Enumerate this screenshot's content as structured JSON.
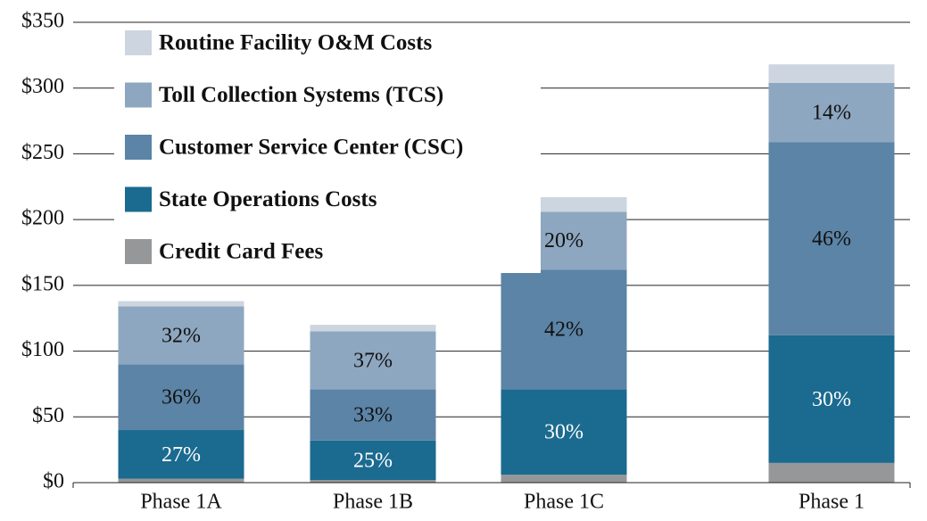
{
  "chart_data": {
    "type": "stacked_bar",
    "categories": [
      "Phase 1A",
      "Phase 1B",
      "Phase 1C",
      "Phase 1"
    ],
    "series": [
      {
        "name": "Credit Card Fees",
        "color": "#959799",
        "values": [
          3,
          2,
          6,
          15
        ]
      },
      {
        "name": "State Operations Costs",
        "color": "#1b6a8f",
        "values": [
          37,
          30,
          65,
          97
        ],
        "labels": [
          "27%",
          "25%",
          "30%",
          "30%"
        ],
        "label_color": "#ffffff"
      },
      {
        "name": "Customer Service Center (CSC)",
        "color": "#5b84a6",
        "values": [
          50,
          39,
          91,
          147
        ],
        "labels": [
          "36%",
          "33%",
          "42%",
          "46%"
        ],
        "label_color": "#111111"
      },
      {
        "name": "Toll Collection Systems (TCS)",
        "color": "#8ea7c0",
        "values": [
          44,
          44,
          44,
          45
        ],
        "labels": [
          "32%",
          "37%",
          "20%",
          "14%"
        ],
        "label_color": "#111111"
      },
      {
        "name": "Routine Facility O&M Costs",
        "color": "#ccd5e0",
        "values": [
          4,
          5,
          11,
          14
        ]
      }
    ],
    "ylim": [
      0,
      350
    ],
    "yticks": [
      {
        "value": 0,
        "label": "$0"
      },
      {
        "value": 50,
        "label": "$50"
      },
      {
        "value": 100,
        "label": "$100"
      },
      {
        "value": 150,
        "label": "$150"
      },
      {
        "value": 200,
        "label": "$200"
      },
      {
        "value": 250,
        "label": "$250"
      },
      {
        "value": 300,
        "label": "$300"
      },
      {
        "value": 350,
        "label": "$350"
      }
    ],
    "grid": true,
    "legend": "upper left"
  }
}
